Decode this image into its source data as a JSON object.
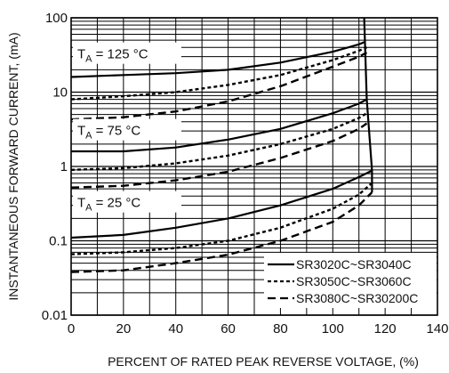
{
  "chart_data": {
    "type": "line",
    "xlabel": "PERCENT OF RATED PEAK REVERSE VOLTAGE, (%)",
    "ylabel": "INSTANTANEOUS FORWARD CURRENT, (mA)",
    "xlim": [
      0,
      140
    ],
    "ylim": [
      0.01,
      100
    ],
    "yscale": "log",
    "x_ticks": [
      "0",
      "20",
      "40",
      "60",
      "80",
      "100",
      "120",
      "140"
    ],
    "y_ticks": [
      "0.01",
      "0.1",
      "1",
      "10",
      "100"
    ],
    "grid": true,
    "legend_position": "bottom-right",
    "annotations": [
      {
        "text_main": "T",
        "text_sub": "A",
        "text_rest": " = 125 °C",
        "x": 1,
        "y": 30
      },
      {
        "text_main": "T",
        "text_sub": "A",
        "text_rest": " = 75 °C",
        "x": 1,
        "y": 2.8
      },
      {
        "text_main": "T",
        "text_sub": "A",
        "text_rest": " = 25 °C",
        "x": 1,
        "y": 0.3
      }
    ],
    "series": [
      {
        "name": "SR3020C~SR3040C",
        "style": "solid",
        "temp": "125",
        "x": [
          0,
          20,
          40,
          60,
          80,
          100,
          110,
          112
        ],
        "y": [
          16,
          17,
          18,
          20,
          25,
          35,
          44,
          47
        ]
      },
      {
        "name": "SR3050C~SR3060C",
        "style": "dotted",
        "temp": "125",
        "x": [
          0,
          20,
          40,
          60,
          80,
          100,
          110,
          113
        ],
        "y": [
          8,
          8.8,
          10,
          12.5,
          17,
          27,
          36,
          40
        ]
      },
      {
        "name": "SR3080C~SR30200C",
        "style": "dashed",
        "temp": "125",
        "x": [
          0,
          20,
          40,
          60,
          80,
          100,
          110,
          113
        ],
        "y": [
          4.3,
          4.6,
          5.5,
          7.5,
          12,
          22,
          30,
          34
        ]
      },
      {
        "name": "SR3020C~SR3040C",
        "style": "solid",
        "temp": "75",
        "x": [
          0,
          20,
          40,
          60,
          80,
          100,
          110,
          113
        ],
        "y": [
          1.6,
          1.6,
          1.8,
          2.3,
          3.2,
          5.2,
          7,
          8
        ]
      },
      {
        "name": "SR3050C~SR3060C",
        "style": "dotted",
        "temp": "75",
        "x": [
          0,
          20,
          40,
          60,
          80,
          100,
          110,
          113
        ],
        "y": [
          0.9,
          0.95,
          1.1,
          1.4,
          2,
          3.2,
          4.5,
          5.2
        ]
      },
      {
        "name": "SR3080C~SR30200C",
        "style": "dashed",
        "temp": "75",
        "x": [
          0,
          20,
          40,
          60,
          80,
          100,
          110,
          113
        ],
        "y": [
          0.52,
          0.55,
          0.65,
          0.85,
          1.3,
          2.2,
          3.2,
          3.8
        ]
      },
      {
        "name": "SR3020C~SR3040C",
        "style": "solid",
        "temp": "25",
        "x": [
          0,
          20,
          40,
          60,
          80,
          100,
          110,
          115
        ],
        "y": [
          0.11,
          0.12,
          0.15,
          0.2,
          0.3,
          0.5,
          0.72,
          0.88
        ]
      },
      {
        "name": "SR3050C~SR3060C",
        "style": "dotted",
        "temp": "25",
        "x": [
          0,
          20,
          40,
          60,
          80,
          100,
          110,
          115
        ],
        "y": [
          0.066,
          0.07,
          0.08,
          0.1,
          0.15,
          0.27,
          0.42,
          0.6
        ]
      },
      {
        "name": "SR3080C~SR30200C",
        "style": "dashed",
        "temp": "25",
        "x": [
          0,
          20,
          40,
          60,
          80,
          100,
          110,
          115
        ],
        "y": [
          0.038,
          0.04,
          0.05,
          0.065,
          0.1,
          0.18,
          0.3,
          0.45
        ]
      },
      {
        "name": "",
        "style": "solid",
        "temp": "",
        "x": [
          112,
          113,
          115,
          115
        ],
        "y": [
          100,
          8,
          0.88,
          0.45
        ]
      }
    ],
    "legend": [
      {
        "label": "SR3020C~SR3040C",
        "style": "solid"
      },
      {
        "label": "SR3050C~SR3060C",
        "style": "dotted"
      },
      {
        "label": "SR3080C~SR30200C",
        "style": "dashed"
      }
    ]
  }
}
